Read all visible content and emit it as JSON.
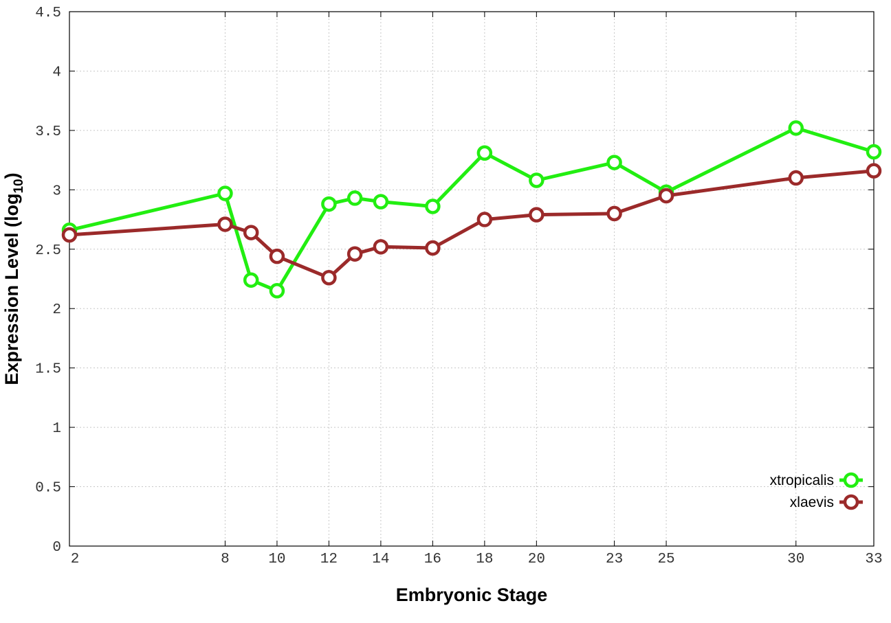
{
  "chart_data": {
    "type": "line",
    "xlabel": "Embryonic Stage",
    "ylabel_main": "Expression Level (log",
    "ylabel_sub": "10",
    "ylabel_close": ")",
    "xlim": [
      2,
      33
    ],
    "ylim": [
      0,
      4.5
    ],
    "x_ticks": [
      2,
      8,
      10,
      12,
      14,
      16,
      18,
      20,
      23,
      25,
      30,
      33
    ],
    "y_ticks": [
      "0",
      "0.5",
      "1",
      "1.5",
      "2",
      "2.5",
      "3",
      "3.5",
      "4",
      "4.5"
    ],
    "grid": true,
    "legend_position": "bottom-right",
    "x": [
      2,
      8,
      9,
      10,
      12,
      13,
      14,
      16,
      18,
      20,
      23,
      25,
      30,
      33
    ],
    "series": [
      {
        "name": "xtropicalis",
        "color": "#22ee11",
        "values": [
          2.66,
          2.97,
          2.24,
          2.15,
          2.88,
          2.93,
          2.9,
          2.86,
          3.31,
          3.08,
          3.23,
          2.98,
          3.52,
          3.32
        ]
      },
      {
        "name": "xlaevis",
        "color": "#9b2a2a",
        "values": [
          2.62,
          2.71,
          2.64,
          2.44,
          2.26,
          2.46,
          2.52,
          2.51,
          2.75,
          2.79,
          2.8,
          2.95,
          3.1,
          3.16
        ]
      }
    ]
  }
}
